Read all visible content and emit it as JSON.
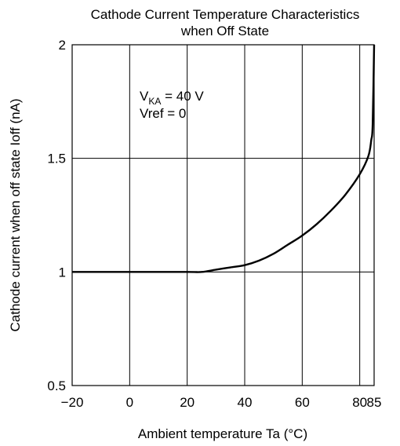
{
  "chart_data": {
    "type": "line",
    "title": "Cathode Current Temperature Characteristics",
    "subtitle": "when Off State",
    "xlabel": "Ambient temperature  Ta (°C)",
    "ylabel": "Cathode current when off state  Ioff  (nA)",
    "xlim": [
      -20,
      85
    ],
    "ylim": [
      0.5,
      2
    ],
    "x_ticks": [
      -20,
      0,
      20,
      40,
      60,
      80,
      85
    ],
    "x_tick_labels": [
      "−20",
      "0",
      "20",
      "40",
      "60",
      "80",
      "85"
    ],
    "y_ticks": [
      0.5,
      1,
      1.5,
      2
    ],
    "y_tick_labels": [
      "0.5",
      "1",
      "1.5",
      "2"
    ],
    "grid": true,
    "annotations": {
      "vka_main": "V",
      "vka_sub": "KA",
      "vka_rest": " = 40 V",
      "vref": "Vref = 0"
    },
    "series": [
      {
        "x": [
          -20,
          0,
          20,
          25,
          30,
          35,
          40,
          45,
          50,
          55,
          60,
          65,
          70,
          75,
          80,
          83,
          84,
          84.5,
          85
        ],
        "y": [
          1.0,
          1.0,
          1.0,
          1.0,
          1.01,
          1.02,
          1.03,
          1.05,
          1.08,
          1.12,
          1.16,
          1.21,
          1.27,
          1.34,
          1.43,
          1.51,
          1.58,
          1.65,
          2.0
        ]
      }
    ],
    "line_color": "#000000"
  }
}
